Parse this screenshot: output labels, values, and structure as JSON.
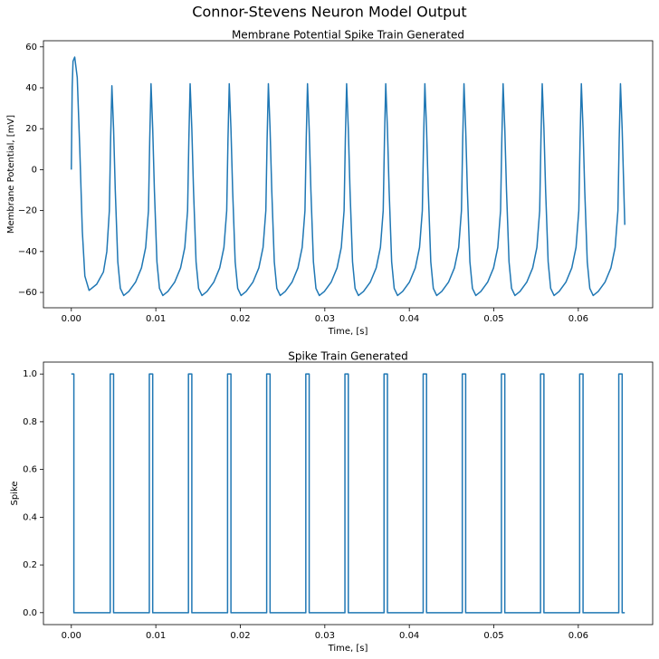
{
  "title": "Connor-Stevens Neuron Model Output",
  "chart_data": [
    {
      "type": "line",
      "title": "Membrane Potential Spike Train Generated",
      "xlabel": "Time, [s]",
      "ylabel": "Membrane Potential, [mV]",
      "color": "#1f77b4",
      "xlim": [
        -0.0033,
        0.0688
      ],
      "ylim": [
        -67.5,
        63
      ],
      "xticks": [
        {
          "value": 0,
          "label": "0.00"
        },
        {
          "value": 0.01,
          "label": "0.01"
        },
        {
          "value": 0.02,
          "label": "0.02"
        },
        {
          "value": 0.03,
          "label": "0.03"
        },
        {
          "value": 0.04,
          "label": "0.04"
        },
        {
          "value": 0.05,
          "label": "0.05"
        },
        {
          "value": 0.06,
          "label": "0.06"
        }
      ],
      "yticks": [
        {
          "value": -60,
          "label": "−60"
        },
        {
          "value": -40,
          "label": "−40"
        },
        {
          "value": -20,
          "label": "−20"
        },
        0,
        20,
        40,
        60
      ],
      "x": [
        0,
        0.0001,
        0.0002,
        0.0004,
        0.0007,
        0.001,
        0.0013,
        0.0016,
        0.0021,
        0.003,
        0.0038,
        0.0042,
        0.0045,
        0.00465,
        0.0048,
        0.005,
        0.0052,
        0.0055,
        0.0058,
        0.0062,
        0.0068,
        0.0076,
        0.0083,
        0.0088,
        0.00913,
        0.00928,
        0.00943,
        0.00963,
        0.00983,
        0.01013,
        0.01043,
        0.01083,
        0.01143,
        0.01223,
        0.01293,
        0.01343,
        0.01376,
        0.01391,
        0.01406,
        0.01426,
        0.01446,
        0.01476,
        0.01506,
        0.01546,
        0.01606,
        0.01686,
        0.01756,
        0.01806,
        0.01839,
        0.01854,
        0.01869,
        0.01889,
        0.01909,
        0.01939,
        0.01969,
        0.02009,
        0.02069,
        0.02149,
        0.02219,
        0.02269,
        0.02302,
        0.02317,
        0.02332,
        0.02352,
        0.02372,
        0.02402,
        0.02432,
        0.02472,
        0.02532,
        0.02612,
        0.02682,
        0.02732,
        0.02765,
        0.0278,
        0.02795,
        0.02815,
        0.02835,
        0.02865,
        0.02895,
        0.02935,
        0.02995,
        0.03075,
        0.03145,
        0.03195,
        0.03228,
        0.03243,
        0.03258,
        0.03278,
        0.03298,
        0.03328,
        0.03358,
        0.03398,
        0.03458,
        0.03538,
        0.03608,
        0.03658,
        0.03691,
        0.03706,
        0.03721,
        0.03741,
        0.03761,
        0.03791,
        0.03821,
        0.03861,
        0.03921,
        0.04001,
        0.04071,
        0.04121,
        0.04154,
        0.04169,
        0.04184,
        0.04204,
        0.04224,
        0.04254,
        0.04284,
        0.04324,
        0.04384,
        0.04464,
        0.04534,
        0.04584,
        0.04617,
        0.04632,
        0.04647,
        0.04667,
        0.04687,
        0.04717,
        0.04747,
        0.04787,
        0.04847,
        0.04927,
        0.04997,
        0.05047,
        0.0508,
        0.05095,
        0.0511,
        0.0513,
        0.0515,
        0.0518,
        0.0521,
        0.0525,
        0.0531,
        0.0539,
        0.0546,
        0.0551,
        0.05543,
        0.05558,
        0.05573,
        0.05593,
        0.05613,
        0.05643,
        0.05673,
        0.05713,
        0.05773,
        0.05853,
        0.05923,
        0.05973,
        0.06006,
        0.06021,
        0.06036,
        0.06056,
        0.06076,
        0.06106,
        0.06136,
        0.06176,
        0.06236,
        0.06316,
        0.06386,
        0.06436,
        0.06469,
        0.06484,
        0.06499,
        0.06519,
        0.0655
      ],
      "values": [
        0,
        40,
        53,
        55,
        45,
        10,
        -30,
        -52,
        -59,
        -56,
        -50,
        -40,
        -20,
        15,
        41,
        20,
        -10,
        -45,
        -58,
        -61.5,
        -59.5,
        -55,
        -48,
        -38,
        -20,
        15,
        42,
        20,
        -10,
        -45,
        -58,
        -61.5,
        -59.5,
        -55,
        -48,
        -38,
        -20,
        15,
        42,
        20,
        -10,
        -45,
        -58,
        -61.5,
        -59.5,
        -55,
        -48,
        -38,
        -20,
        15,
        42,
        20,
        -10,
        -45,
        -58,
        -61.5,
        -59.5,
        -55,
        -48,
        -38,
        -20,
        15,
        42,
        20,
        -10,
        -45,
        -58,
        -61.5,
        -59.5,
        -55,
        -48,
        -38,
        -20,
        15,
        42,
        20,
        -10,
        -45,
        -58,
        -61.5,
        -59.5,
        -55,
        -48,
        -38,
        -20,
        15,
        42,
        20,
        -10,
        -45,
        -58,
        -61.5,
        -59.5,
        -55,
        -48,
        -38,
        -20,
        15,
        42,
        20,
        -10,
        -45,
        -58,
        -61.5,
        -59.5,
        -55,
        -48,
        -38,
        -20,
        15,
        42,
        20,
        -10,
        -45,
        -58,
        -61.5,
        -59.5,
        -55,
        -48,
        -38,
        -20,
        15,
        42,
        20,
        -10,
        -45,
        -58,
        -61.5,
        -59.5,
        -55,
        -48,
        -38,
        -20,
        15,
        42,
        20,
        -10,
        -45,
        -58,
        -61.5,
        -59.5,
        -55,
        -48,
        -38,
        -20,
        15,
        42,
        20,
        -10,
        -45,
        -58,
        -61.5,
        -59.5,
        -55,
        -48,
        -38,
        -20,
        15,
        42,
        20,
        -10,
        -45,
        -58,
        -61.5,
        -59.5,
        -55,
        -48,
        -38,
        -20,
        15,
        42,
        20,
        -27
      ]
    },
    {
      "type": "line",
      "title": "Spike Train Generated",
      "xlabel": "Time, [s]",
      "ylabel": "Spike",
      "color": "#1f77b4",
      "xlim": [
        -0.0033,
        0.0688
      ],
      "ylim": [
        -0.05,
        1.05
      ],
      "xticks": [
        {
          "value": 0,
          "label": "0.00"
        },
        {
          "value": 0.01,
          "label": "0.01"
        },
        {
          "value": 0.02,
          "label": "0.02"
        },
        {
          "value": 0.03,
          "label": "0.03"
        },
        {
          "value": 0.04,
          "label": "0.04"
        },
        {
          "value": 0.05,
          "label": "0.05"
        },
        {
          "value": 0.06,
          "label": "0.06"
        }
      ],
      "yticks": [
        {
          "value": 0,
          "label": "0.0"
        },
        0.2,
        0.4,
        0.6,
        0.8,
        {
          "value": 1,
          "label": "1.0"
        }
      ],
      "x": [
        0,
        0.0003,
        0.0003,
        0.0046,
        0.0046,
        0.005,
        0.005,
        0.00923,
        0.00923,
        0.00963,
        0.00963,
        0.01386,
        0.01386,
        0.01426,
        0.01426,
        0.01849,
        0.01849,
        0.01889,
        0.01889,
        0.02312,
        0.02312,
        0.02352,
        0.02352,
        0.02775,
        0.02775,
        0.02815,
        0.02815,
        0.03238,
        0.03238,
        0.03278,
        0.03278,
        0.03701,
        0.03701,
        0.03741,
        0.03741,
        0.04164,
        0.04164,
        0.04204,
        0.04204,
        0.04627,
        0.04627,
        0.04667,
        0.04667,
        0.0509,
        0.0509,
        0.0513,
        0.0513,
        0.05553,
        0.05553,
        0.05593,
        0.05593,
        0.06016,
        0.06016,
        0.06056,
        0.06056,
        0.06479,
        0.06479,
        0.06519,
        0.06519,
        0.0655
      ],
      "values": [
        1,
        1,
        0,
        0,
        1,
        1,
        0,
        0,
        1,
        1,
        0,
        0,
        1,
        1,
        0,
        0,
        1,
        1,
        0,
        0,
        1,
        1,
        0,
        0,
        1,
        1,
        0,
        0,
        1,
        1,
        0,
        0,
        1,
        1,
        0,
        0,
        1,
        1,
        0,
        0,
        1,
        1,
        0,
        0,
        1,
        1,
        0,
        0,
        1,
        1,
        0,
        0,
        1,
        1,
        0,
        0,
        1,
        1,
        0,
        0
      ]
    }
  ]
}
